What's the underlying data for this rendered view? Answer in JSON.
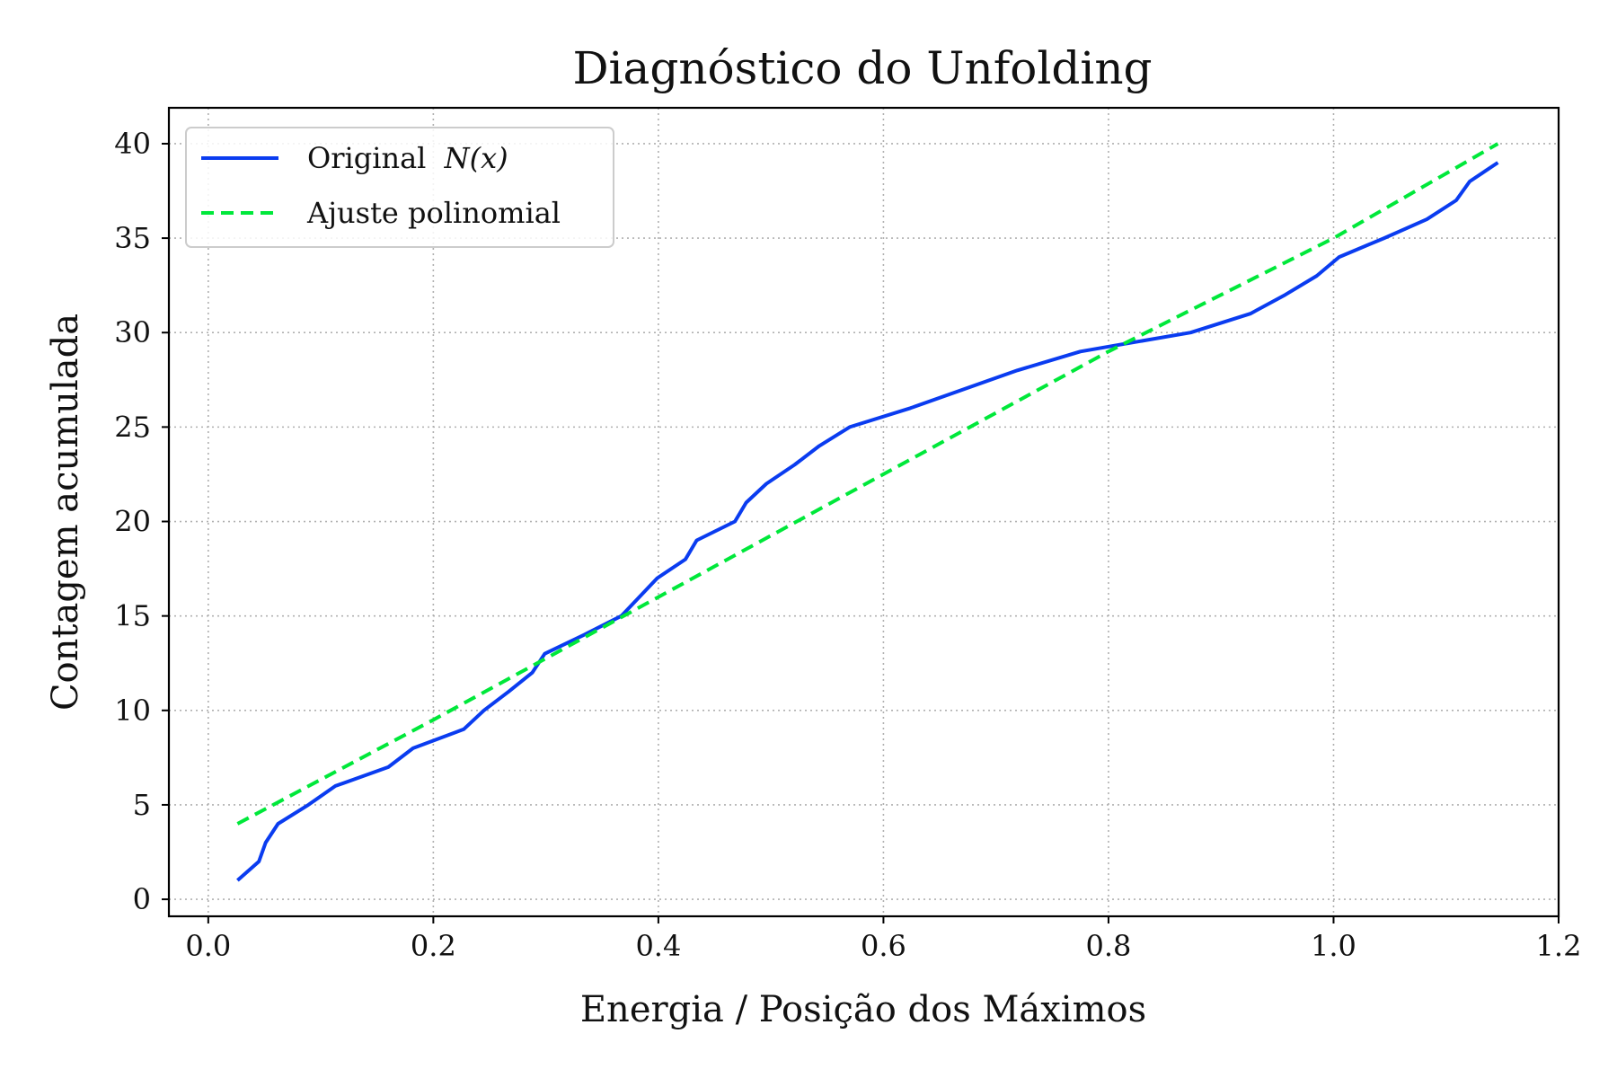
{
  "chart_data": {
    "type": "line",
    "title": "Diagnóstico do Unfolding",
    "xlabel": "Energia / Posição dos Máximos",
    "ylabel": "Contagem acumulada",
    "xlim": [
      -0.035,
      1.2
    ],
    "ylim": [
      -0.9,
      41.9
    ],
    "x_ticks": [
      0.0,
      0.2,
      0.4,
      0.6,
      0.8,
      1.0,
      1.2
    ],
    "x_tick_labels": [
      "0.0",
      "0.2",
      "0.4",
      "0.6",
      "0.8",
      "1.0",
      "1.2"
    ],
    "y_ticks": [
      0,
      5,
      10,
      15,
      20,
      25,
      30,
      35,
      40
    ],
    "y_tick_labels": [
      "0",
      "5",
      "10",
      "15",
      "20",
      "25",
      "30",
      "35",
      "40"
    ],
    "grid": true,
    "grid_style": "dotted",
    "legend_position": "top-left",
    "series": [
      {
        "name": "Original N(x)",
        "legend_label": "Original",
        "legend_math": "N(x)",
        "style": "solid",
        "color": "#0a3cf0",
        "x": [
          0.026,
          0.045,
          0.051,
          0.062,
          0.089,
          0.113,
          0.16,
          0.182,
          0.227,
          0.245,
          0.267,
          0.288,
          0.299,
          0.334,
          0.367,
          0.399,
          0.424,
          0.434,
          0.468,
          0.478,
          0.496,
          0.521,
          0.543,
          0.57,
          0.624,
          0.719,
          0.775,
          0.824,
          0.873,
          0.926,
          0.957,
          0.985,
          1.005,
          1.045,
          1.083,
          1.109,
          1.121,
          1.146
        ],
        "y": [
          1,
          2,
          3,
          4,
          5,
          6,
          7,
          8,
          9,
          10,
          11,
          12,
          13,
          14,
          15,
          17,
          18,
          19,
          20,
          21,
          22,
          23,
          24,
          25,
          26,
          28,
          29,
          29.5,
          30,
          31,
          32,
          33,
          34,
          35,
          36,
          37,
          38,
          39
        ]
      },
      {
        "name": "Ajuste polinomial",
        "legend_label": "Ajuste polinomial",
        "style": "dashed",
        "color": "#00e83a",
        "x": [
          0.026,
          0.2,
          0.4,
          0.6,
          0.8,
          1.0,
          1.146
        ],
        "y": [
          4.0,
          9.5,
          16.0,
          22.5,
          29.0,
          35.0,
          40.0
        ]
      }
    ]
  }
}
